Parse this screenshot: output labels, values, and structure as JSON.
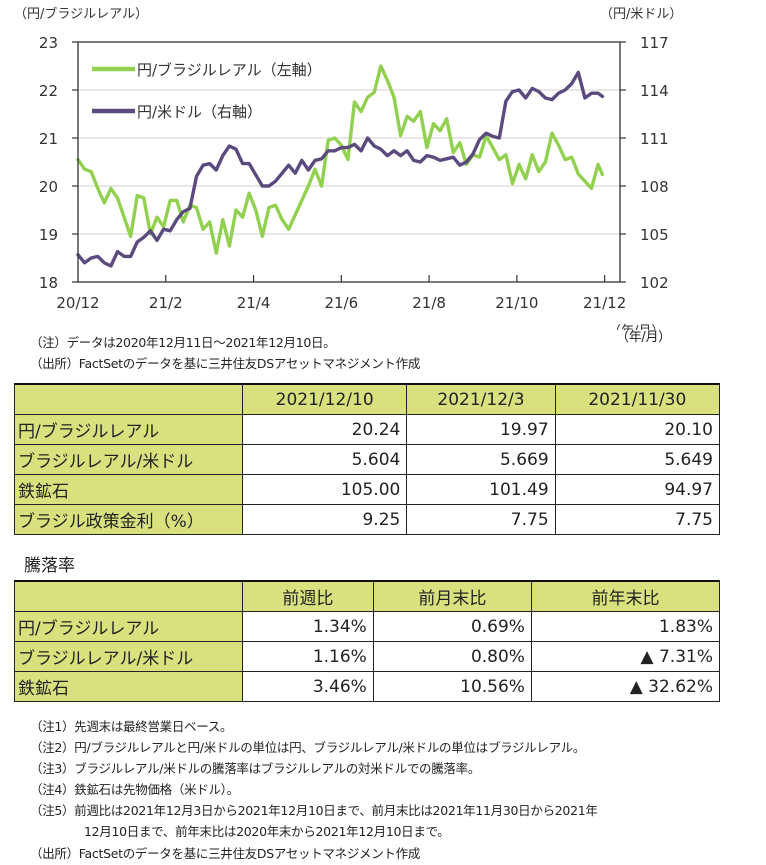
{
  "chart_data": {
    "type": "line",
    "title": "",
    "left_axis_label": "（円/ブラジルレアル）",
    "right_axis_label": "（円/米ドル）",
    "xlabel": "（年/月）",
    "left_ylim": [
      18,
      23
    ],
    "right_ylim": [
      102,
      117
    ],
    "left_ticks": [
      "23",
      "22",
      "21",
      "20",
      "19",
      "18"
    ],
    "right_ticks": [
      "117",
      "114",
      "111",
      "108",
      "105",
      "102"
    ],
    "x_ticks": [
      "20/12",
      "21/2",
      "21/4",
      "21/6",
      "21/8",
      "21/10",
      "21/12"
    ],
    "grid": true,
    "legend_position": "top-left",
    "x_range": [
      "2020/12/11",
      "2021/12/10"
    ],
    "x_months_from_start_of_2020_12": [
      0,
      12.3
    ],
    "series": [
      {
        "name": "円/ブラジルレアル（左軸）",
        "axis": "left",
        "color": "#92d050",
        "x": [
          0.35,
          0.5,
          0.65,
          0.8,
          0.95,
          1.1,
          1.25,
          1.4,
          1.55,
          1.7,
          1.85,
          2.0,
          2.15,
          2.3,
          2.45,
          2.6,
          2.75,
          2.9,
          3.05,
          3.2,
          3.35,
          3.5,
          3.65,
          3.8,
          3.95,
          4.1,
          4.25,
          4.4,
          4.55,
          4.7,
          4.85,
          5.0,
          5.15,
          5.3,
          5.45,
          5.6,
          5.75,
          5.9,
          6.05,
          6.2,
          6.35,
          6.5,
          6.65,
          6.8,
          6.95,
          7.1,
          7.25,
          7.4,
          7.55,
          7.7,
          7.85,
          8.0,
          8.15,
          8.3,
          8.45,
          8.6,
          8.75,
          8.9,
          9.05,
          9.2,
          9.35,
          9.5,
          9.65,
          9.8,
          9.95,
          10.1,
          10.25,
          10.4,
          10.55,
          10.7,
          10.85,
          11.0,
          11.15,
          11.3,
          11.45,
          11.6,
          11.75,
          11.9,
          12.05,
          12.2,
          12.3
        ],
        "values": [
          20.55,
          20.35,
          20.3,
          19.95,
          19.65,
          19.95,
          19.75,
          19.35,
          18.95,
          19.8,
          19.75,
          19.0,
          19.35,
          19.15,
          19.7,
          19.7,
          19.25,
          19.6,
          19.55,
          19.1,
          19.25,
          18.6,
          19.3,
          18.75,
          19.5,
          19.35,
          19.85,
          19.5,
          18.95,
          19.55,
          19.6,
          19.3,
          19.1,
          19.4,
          19.7,
          20.0,
          20.35,
          20.0,
          20.95,
          21.0,
          20.85,
          20.55,
          21.75,
          21.55,
          21.85,
          21.95,
          22.5,
          22.2,
          21.85,
          21.05,
          21.45,
          21.35,
          21.55,
          20.8,
          21.3,
          21.15,
          21.4,
          20.7,
          20.9,
          20.45,
          20.65,
          20.6,
          21.05,
          20.8,
          20.55,
          20.65,
          20.05,
          20.45,
          20.15,
          20.65,
          20.3,
          20.5,
          21.1,
          20.85,
          20.55,
          20.6,
          20.25,
          20.1,
          19.95,
          20.45,
          20.24
        ]
      },
      {
        "name": "円/米ドル（右軸）",
        "axis": "right",
        "color": "#5b4a7e",
        "x": [
          0.35,
          0.5,
          0.65,
          0.8,
          0.95,
          1.1,
          1.25,
          1.4,
          1.55,
          1.7,
          1.85,
          2.0,
          2.15,
          2.3,
          2.45,
          2.6,
          2.75,
          2.9,
          3.05,
          3.2,
          3.35,
          3.5,
          3.65,
          3.8,
          3.95,
          4.1,
          4.25,
          4.4,
          4.55,
          4.7,
          4.85,
          5.0,
          5.15,
          5.3,
          5.45,
          5.6,
          5.75,
          5.9,
          6.05,
          6.2,
          6.35,
          6.5,
          6.65,
          6.8,
          6.95,
          7.1,
          7.25,
          7.4,
          7.55,
          7.7,
          7.85,
          8.0,
          8.15,
          8.3,
          8.45,
          8.6,
          8.75,
          8.9,
          9.05,
          9.2,
          9.35,
          9.5,
          9.65,
          9.8,
          9.95,
          10.1,
          10.25,
          10.4,
          10.55,
          10.7,
          10.85,
          11.0,
          11.15,
          11.3,
          11.45,
          11.6,
          11.75,
          11.9,
          12.05,
          12.2,
          12.3
        ],
        "values": [
          103.7,
          103.2,
          103.5,
          103.6,
          103.2,
          103.0,
          103.9,
          103.6,
          103.6,
          104.5,
          104.8,
          105.2,
          104.6,
          105.3,
          105.2,
          105.9,
          106.4,
          106.6,
          108.6,
          109.3,
          109.4,
          109.0,
          109.9,
          110.5,
          110.3,
          109.4,
          109.4,
          108.7,
          108.0,
          108.0,
          108.3,
          108.8,
          109.3,
          108.8,
          109.6,
          109.0,
          109.6,
          109.7,
          110.2,
          110.2,
          110.4,
          110.4,
          110.6,
          110.2,
          111.0,
          110.5,
          110.3,
          109.9,
          110.2,
          109.9,
          110.2,
          109.6,
          109.5,
          109.9,
          109.8,
          109.6,
          109.7,
          109.8,
          109.3,
          109.5,
          110.0,
          110.9,
          111.3,
          111.1,
          111.0,
          113.3,
          113.9,
          114.0,
          113.5,
          114.1,
          113.9,
          113.5,
          113.4,
          113.8,
          114.0,
          114.4,
          115.1,
          113.5,
          113.8,
          113.8,
          113.6
        ]
      }
    ]
  },
  "chart_notes": [
    "（注）データは2020年12月11日～2021年12月10日。",
    "（出所）FactSetのデータを基に三井住友DSアセットマネジメント作成"
  ],
  "table1": {
    "headers": [
      "",
      "2021/12/10",
      "2021/12/3",
      "2021/11/30"
    ],
    "rows": [
      {
        "label": "円/ブラジルレアル",
        "values": [
          "20.24",
          "19.97",
          "20.10"
        ]
      },
      {
        "label": "ブラジルレアル/米ドル",
        "values": [
          "5.604",
          "5.669",
          "5.649"
        ]
      },
      {
        "label": "鉄鉱石",
        "values": [
          "105.00",
          "101.49",
          "94.97"
        ]
      },
      {
        "label": "ブラジル政策金利（%）",
        "values": [
          "9.25",
          "7.75",
          "7.75"
        ]
      }
    ]
  },
  "table2": {
    "title": "騰落率",
    "headers": [
      "",
      "前週比",
      "前月末比",
      "前年末比"
    ],
    "rows": [
      {
        "label": "円/ブラジルレアル",
        "values": [
          "1.34%",
          "0.69%",
          "1.83%"
        ]
      },
      {
        "label": "ブラジルレアル/米ドル",
        "values": [
          "1.16%",
          "0.80%",
          "▲ 7.31%"
        ]
      },
      {
        "label": "鉄鉱石",
        "values": [
          "3.46%",
          "10.56%",
          "▲ 32.62%"
        ]
      }
    ]
  },
  "footnotes": [
    "（注1）先週末は最終営業日ベース。",
    "（注2）円/ブラジルレアルと円/米ドルの単位は円、ブラジルレアル/米ドルの単位はブラジルレアル。",
    "（注3）ブラジルレアル/米ドルの騰落率はブラジルレアルの対米ドルでの騰落率。",
    "（注4）鉄鉱石は先物価格（米ドル）。",
    "（注5）前週比は2021年12月3日から2021年12月10日まで、前月末比は2021年11月30日から2021年",
    "12月10日まで、前年末比は2020年末から2021年12月10日まで。",
    "（出所）FactSetのデータを基に三井住友DSアセットマネジメント作成"
  ]
}
